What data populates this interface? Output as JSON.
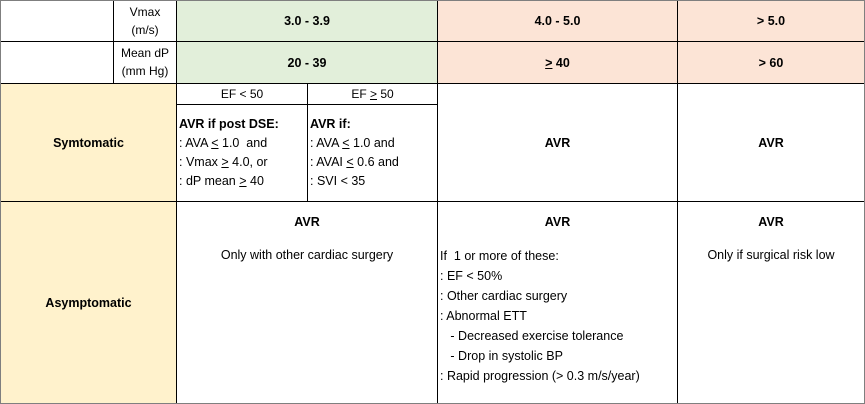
{
  "header": {
    "vmax_label_1": "Vmax",
    "vmax_label_2": "(m/s)",
    "vmax_col1": "3.0 - 3.9",
    "vmax_col2": "4.0 - 5.0",
    "vmax_col3": "> 5.0",
    "meandp_label_1": "Mean dP",
    "meandp_label_2": "(mm Hg)",
    "meandp_col1": "20 - 39",
    "meandp_col2_sym": ">",
    "meandp_col2_val": " 40",
    "meandp_col3": "> 60"
  },
  "symptomatic": {
    "label": "Symtomatic",
    "ef_low_header": "EF < 50",
    "ef_high_header_prefix": "EF ",
    "ef_high_header_sym": ">",
    "ef_high_header_val": " 50",
    "ef_low": {
      "title": "AVR if post DSE:",
      "line1_pre": ": AVA ",
      "line1_sym": "<",
      "line1_post": " 1.0  and",
      "line2_pre": ": Vmax ",
      "line2_sym": ">",
      "line2_post": " 4.0, or",
      "line3_pre": ": dP mean ",
      "line3_sym": ">",
      "line3_post": " 40"
    },
    "ef_high": {
      "title": "AVR if:",
      "line1_pre": ": AVA ",
      "line1_sym": "<",
      "line1_post": " 1.0 and",
      "line2_pre": ": AVAI ",
      "line2_sym": "<",
      "line2_post": " 0.6 and",
      "line3": ": SVI < 35"
    },
    "col2": "AVR",
    "col3": "AVR"
  },
  "asymptomatic": {
    "label": "Asymptomatic",
    "col1_title": "AVR",
    "col1_note": "Only with other cardiac surgery",
    "col2_title": "AVR",
    "col2_lines": [
      "If  1 or more of these:",
      ": EF < 50%",
      ": Other cardiac surgery",
      ": Abnormal ETT",
      "   - Decreased exercise tolerance",
      "   - Drop in systolic BP",
      ": Rapid progression (> 0.3 m/s/year)"
    ],
    "col3_title": "AVR",
    "col3_note": "Only if surgical risk low"
  },
  "colors": {
    "green": "#e2efda",
    "peach": "#fce4d6",
    "tan": "#fff2cc"
  }
}
